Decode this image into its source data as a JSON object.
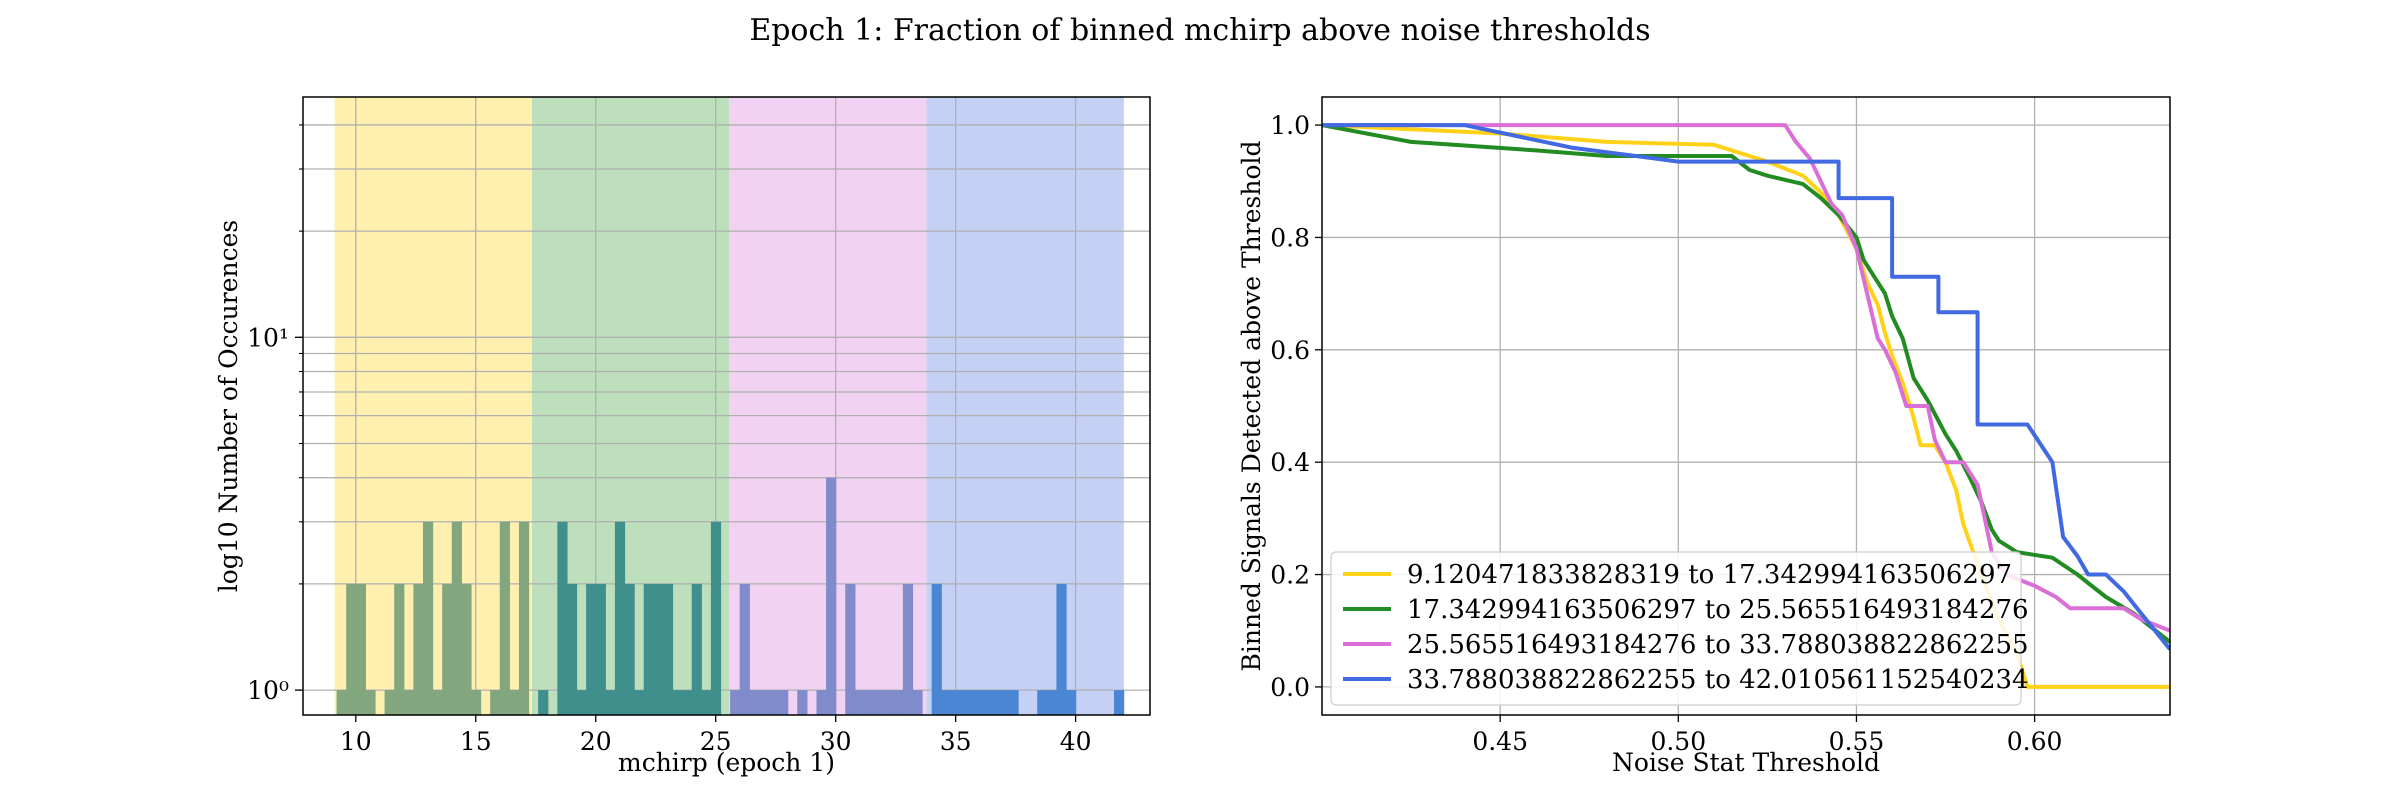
{
  "figure": {
    "title": "Epoch 1: Fraction of binned mchirp above noise thresholds"
  },
  "chart_data": [
    {
      "type": "bar",
      "subtype": "histogram",
      "xlabel": "mchirp (epoch 1)",
      "ylabel": "log10 Number of Occurences",
      "xlim": [
        7.8,
        43.1
      ],
      "ylim": [
        0.85,
        48
      ],
      "yscale": "log",
      "grid": true,
      "xticks": [
        10,
        15,
        20,
        25,
        30,
        35,
        40
      ],
      "yticks": [
        {
          "value": 1,
          "label": "10⁰"
        },
        {
          "value": 10,
          "label": "10¹"
        }
      ],
      "bin_width": 0.4,
      "bands": [
        {
          "from": 9.120471833828319,
          "to": 17.342994163506297,
          "color": "#fff0b0"
        },
        {
          "from": 17.342994163506297,
          "to": 25.565516493184276,
          "color": "#bddfbc"
        },
        {
          "from": 25.565516493184276,
          "to": 33.788038822862255,
          "color": "#f2d2f2"
        },
        {
          "from": 33.788038822862255,
          "to": 42.010561152540234,
          "color": "#c5d1f4"
        }
      ],
      "bar_colors": [
        "#82a67e",
        "#3f8f8d",
        "#7f8bcb",
        "#4a86d4"
      ],
      "bars": [
        [
          9.2,
          1
        ],
        [
          9.6,
          2
        ],
        [
          10.0,
          2
        ],
        [
          10.4,
          1
        ],
        [
          11.2,
          1
        ],
        [
          11.6,
          2
        ],
        [
          12.0,
          1
        ],
        [
          12.4,
          2
        ],
        [
          12.8,
          3
        ],
        [
          13.2,
          1
        ],
        [
          13.6,
          2
        ],
        [
          14.0,
          3
        ],
        [
          14.4,
          2
        ],
        [
          14.8,
          1
        ],
        [
          15.6,
          1
        ],
        [
          16.0,
          3
        ],
        [
          16.4,
          1
        ],
        [
          16.8,
          3
        ],
        [
          17.6,
          1
        ],
        [
          18.4,
          3
        ],
        [
          18.8,
          2
        ],
        [
          19.2,
          1
        ],
        [
          19.6,
          2
        ],
        [
          20.0,
          2
        ],
        [
          20.4,
          1
        ],
        [
          20.8,
          3
        ],
        [
          21.2,
          2
        ],
        [
          21.6,
          1
        ],
        [
          22.0,
          2
        ],
        [
          22.4,
          2
        ],
        [
          22.8,
          2
        ],
        [
          23.2,
          1
        ],
        [
          23.6,
          1
        ],
        [
          24.0,
          2
        ],
        [
          24.4,
          1
        ],
        [
          24.8,
          3
        ],
        [
          25.6,
          1
        ],
        [
          26.0,
          2
        ],
        [
          26.4,
          1
        ],
        [
          26.8,
          1
        ],
        [
          27.2,
          1
        ],
        [
          27.6,
          1
        ],
        [
          28.4,
          1
        ],
        [
          29.2,
          1
        ],
        [
          29.6,
          4
        ],
        [
          30.4,
          2
        ],
        [
          30.8,
          1
        ],
        [
          31.2,
          1
        ],
        [
          31.6,
          1
        ],
        [
          32.0,
          1
        ],
        [
          32.4,
          1
        ],
        [
          32.8,
          2
        ],
        [
          33.2,
          1
        ],
        [
          34.0,
          2
        ],
        [
          34.4,
          1
        ],
        [
          34.8,
          1
        ],
        [
          35.2,
          1
        ],
        [
          35.6,
          1
        ],
        [
          36.0,
          1
        ],
        [
          36.4,
          1
        ],
        [
          36.8,
          1
        ],
        [
          37.2,
          1
        ],
        [
          38.4,
          1
        ],
        [
          38.8,
          1
        ],
        [
          39.2,
          2
        ],
        [
          39.6,
          1
        ],
        [
          41.6,
          1
        ]
      ]
    },
    {
      "type": "line",
      "subtype": "step",
      "xlabel": "Noise Stat Threshold",
      "ylabel": "Binned Signals Detected above Threshold",
      "xlim": [
        0.4,
        0.638
      ],
      "ylim": [
        -0.05,
        1.05
      ],
      "grid": true,
      "legend_position": "lower-left",
      "xticks": [
        0.45,
        0.5,
        0.55,
        0.6
      ],
      "xtick_labels": [
        "0.45",
        "0.50",
        "0.55",
        "0.60"
      ],
      "yticks": [
        0.0,
        0.2,
        0.4,
        0.6,
        0.8,
        1.0
      ],
      "ytick_labels": [
        "0.0",
        "0.2",
        "0.4",
        "0.6",
        "0.8",
        "1.0"
      ],
      "series": [
        {
          "name": "9.120471833828319 to 17.342994163506297",
          "color": "#ffd118",
          "points": [
            [
              0.4,
              1.0
            ],
            [
              0.45,
              0.985
            ],
            [
              0.48,
              0.97
            ],
            [
              0.51,
              0.965
            ],
            [
              0.525,
              0.935
            ],
            [
              0.535,
              0.91
            ],
            [
              0.54,
              0.88
            ],
            [
              0.545,
              0.84
            ],
            [
              0.55,
              0.78
            ],
            [
              0.553,
              0.72
            ],
            [
              0.556,
              0.68
            ],
            [
              0.558,
              0.63
            ],
            [
              0.56,
              0.59
            ],
            [
              0.563,
              0.54
            ],
            [
              0.566,
              0.48
            ],
            [
              0.568,
              0.43
            ],
            [
              0.572,
              0.43
            ],
            [
              0.575,
              0.4
            ],
            [
              0.578,
              0.35
            ],
            [
              0.58,
              0.29
            ],
            [
              0.585,
              0.2
            ],
            [
              0.59,
              0.12
            ],
            [
              0.595,
              0.06
            ],
            [
              0.598,
              0.0
            ],
            [
              0.638,
              0.0
            ]
          ]
        },
        {
          "name": "17.342994163506297 to 25.565516493184276",
          "color": "#228b22",
          "points": [
            [
              0.4,
              1.0
            ],
            [
              0.425,
              0.97
            ],
            [
              0.46,
              0.955
            ],
            [
              0.48,
              0.945
            ],
            [
              0.515,
              0.945
            ],
            [
              0.52,
              0.92
            ],
            [
              0.525,
              0.91
            ],
            [
              0.535,
              0.895
            ],
            [
              0.54,
              0.87
            ],
            [
              0.545,
              0.84
            ],
            [
              0.55,
              0.8
            ],
            [
              0.552,
              0.76
            ],
            [
              0.555,
              0.73
            ],
            [
              0.558,
              0.7
            ],
            [
              0.56,
              0.66
            ],
            [
              0.563,
              0.62
            ],
            [
              0.566,
              0.55
            ],
            [
              0.57,
              0.51
            ],
            [
              0.575,
              0.45
            ],
            [
              0.578,
              0.42
            ],
            [
              0.582,
              0.37
            ],
            [
              0.585,
              0.33
            ],
            [
              0.588,
              0.28
            ],
            [
              0.59,
              0.26
            ],
            [
              0.595,
              0.24
            ],
            [
              0.605,
              0.23
            ],
            [
              0.612,
              0.2
            ],
            [
              0.62,
              0.16
            ],
            [
              0.628,
              0.13
            ],
            [
              0.638,
              0.08
            ]
          ]
        },
        {
          "name": "25.565516493184276 to 33.788038822862255",
          "color": "#da70d6",
          "points": [
            [
              0.4,
              1.0
            ],
            [
              0.53,
              1.0
            ],
            [
              0.533,
              0.97
            ],
            [
              0.537,
              0.94
            ],
            [
              0.54,
              0.9
            ],
            [
              0.543,
              0.86
            ],
            [
              0.546,
              0.84
            ],
            [
              0.55,
              0.78
            ],
            [
              0.553,
              0.7
            ],
            [
              0.556,
              0.62
            ],
            [
              0.558,
              0.6
            ],
            [
              0.561,
              0.56
            ],
            [
              0.564,
              0.5
            ],
            [
              0.57,
              0.5
            ],
            [
              0.572,
              0.44
            ],
            [
              0.575,
              0.4
            ],
            [
              0.58,
              0.4
            ],
            [
              0.584,
              0.36
            ],
            [
              0.588,
              0.24
            ],
            [
              0.592,
              0.2
            ],
            [
              0.6,
              0.18
            ],
            [
              0.606,
              0.16
            ],
            [
              0.61,
              0.14
            ],
            [
              0.625,
              0.14
            ],
            [
              0.63,
              0.12
            ],
            [
              0.638,
              0.1
            ]
          ]
        },
        {
          "name": "33.788038822862255 to 42.010561152540234",
          "color": "#4169e1",
          "points": [
            [
              0.4,
              1.0
            ],
            [
              0.44,
              1.0
            ],
            [
              0.47,
              0.96
            ],
            [
              0.5,
              0.935
            ],
            [
              0.52,
              0.935
            ],
            [
              0.53,
              0.935
            ],
            [
              0.545,
              0.935
            ],
            [
              0.545,
              0.87
            ],
            [
              0.56,
              0.87
            ],
            [
              0.56,
              0.73
            ],
            [
              0.573,
              0.73
            ],
            [
              0.573,
              0.667
            ],
            [
              0.584,
              0.667
            ],
            [
              0.584,
              0.467
            ],
            [
              0.598,
              0.467
            ],
            [
              0.605,
              0.4
            ],
            [
              0.608,
              0.267
            ],
            [
              0.612,
              0.233
            ],
            [
              0.615,
              0.2
            ],
            [
              0.62,
              0.2
            ],
            [
              0.625,
              0.17
            ],
            [
              0.63,
              0.13
            ],
            [
              0.638,
              0.067
            ]
          ]
        }
      ]
    }
  ]
}
